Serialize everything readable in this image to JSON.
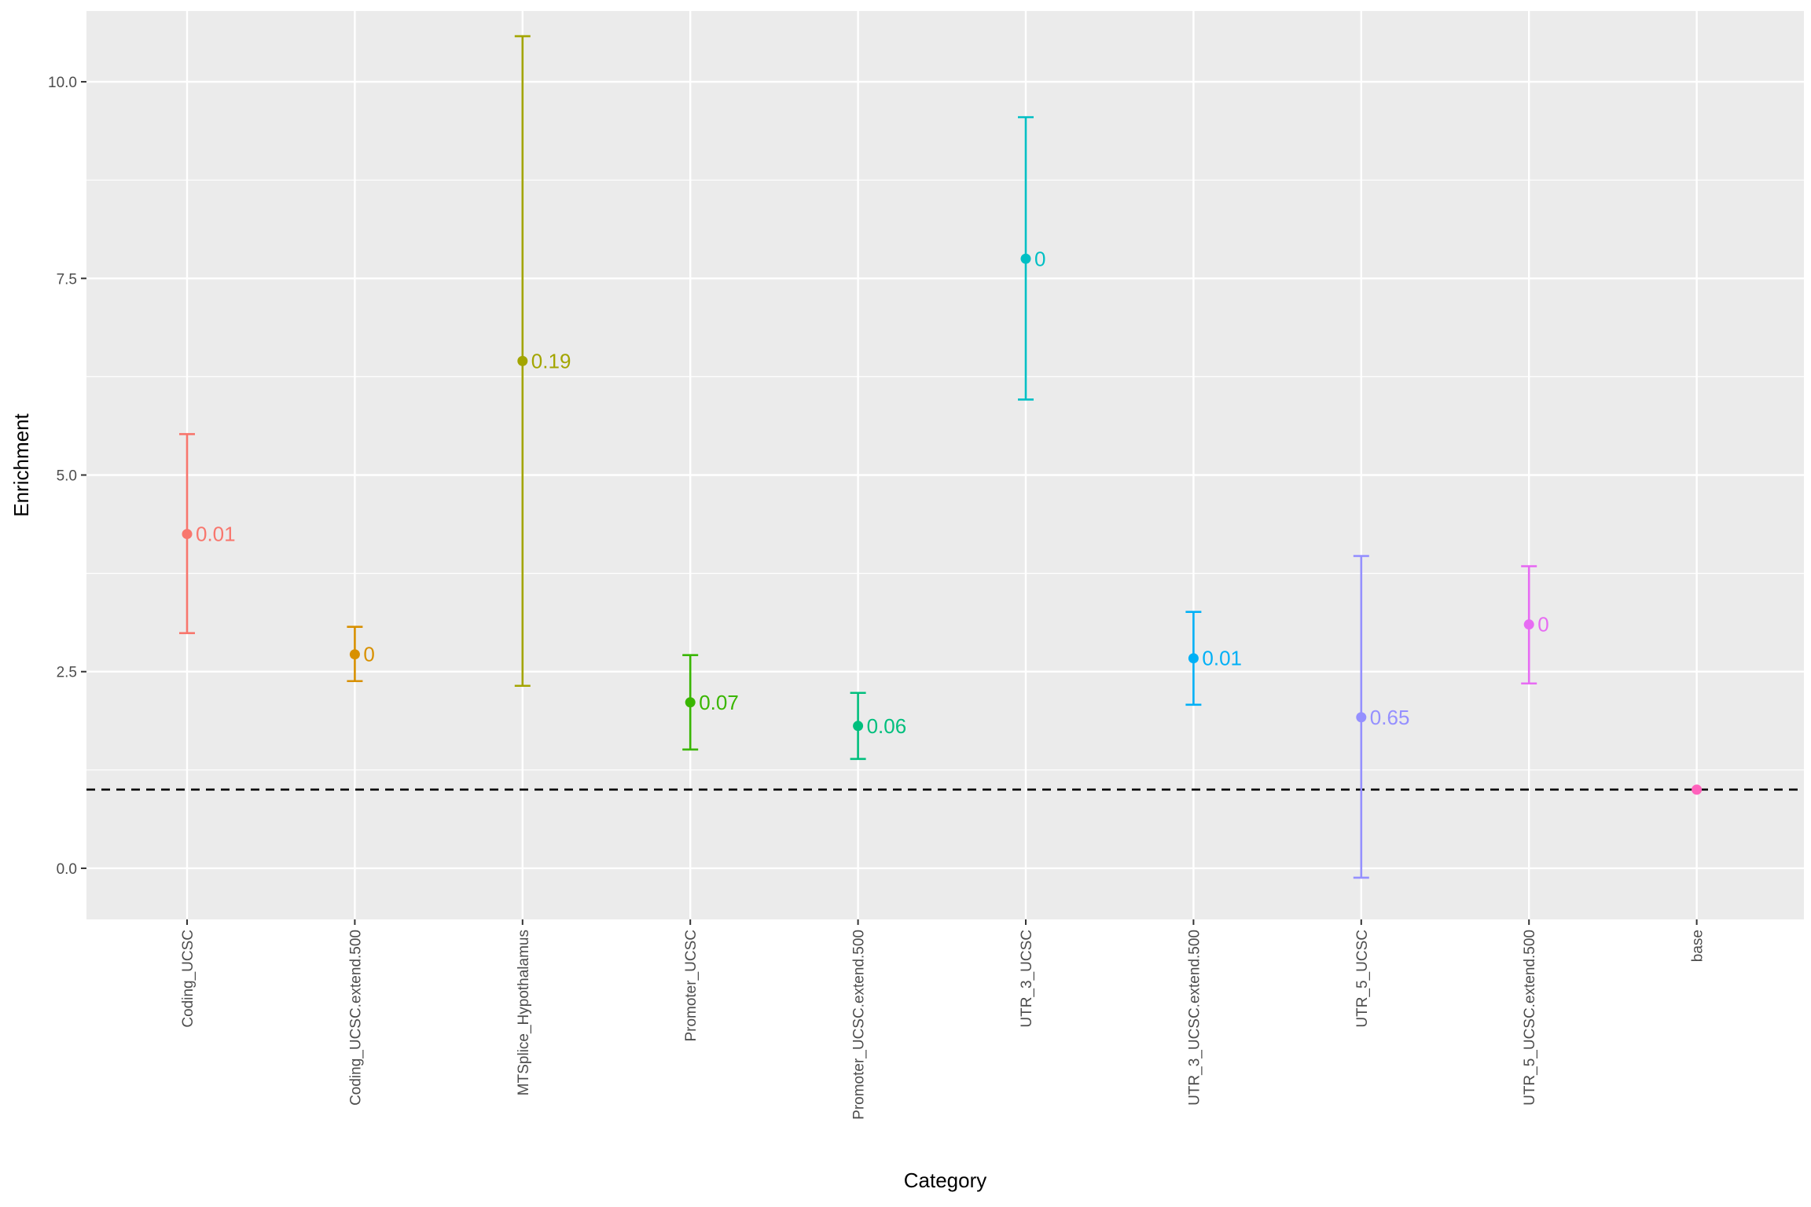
{
  "chart_data": {
    "type": "scatter",
    "subtype": "point-with-error-bars",
    "xlabel": "Category",
    "ylabel": "Enrichment",
    "ylim": [
      -0.65,
      10.9
    ],
    "yticks": [
      0.0,
      2.5,
      5.0,
      7.5,
      10.0
    ],
    "ytick_labels": [
      "0.0",
      "2.5",
      "5.0",
      "7.5",
      "10.0"
    ],
    "reference_line": {
      "y": 1.0,
      "style": "dashed",
      "color": "#000000"
    },
    "grid": true,
    "panel_background": "#ebebeb",
    "points": [
      {
        "category": "Coding_UCSC",
        "y": 4.25,
        "lower": 2.99,
        "upper": 5.52,
        "label": "0.01",
        "color": "#F8766D"
      },
      {
        "category": "Coding_UCSC.extend.500",
        "y": 2.72,
        "lower": 2.38,
        "upper": 3.07,
        "label": "0",
        "color": "#D89000"
      },
      {
        "category": "MTSplice_Hypothalamus",
        "y": 6.45,
        "lower": 2.32,
        "upper": 10.58,
        "label": "0.19",
        "color": "#A3A500"
      },
      {
        "category": "Promoter_UCSC",
        "y": 2.11,
        "lower": 1.51,
        "upper": 2.71,
        "label": "0.07",
        "color": "#39B600"
      },
      {
        "category": "Promoter_UCSC.extend.500",
        "y": 1.81,
        "lower": 1.39,
        "upper": 2.23,
        "label": "0.06",
        "color": "#00BF7D"
      },
      {
        "category": "UTR_3_UCSC",
        "y": 7.75,
        "lower": 5.96,
        "upper": 9.55,
        "label": "0",
        "color": "#00BFC4"
      },
      {
        "category": "UTR_3_UCSC.extend.500",
        "y": 2.67,
        "lower": 2.08,
        "upper": 3.26,
        "label": "0.01",
        "color": "#00B0F6"
      },
      {
        "category": "UTR_5_UCSC",
        "y": 1.92,
        "lower": -0.12,
        "upper": 3.97,
        "label": "0.65",
        "color": "#9590FF"
      },
      {
        "category": "UTR_5_UCSC.extend.500",
        "y": 3.1,
        "lower": 2.35,
        "upper": 3.84,
        "label": "0",
        "color": "#E76BF3"
      },
      {
        "category": "base",
        "y": 1.0,
        "lower": 1.0,
        "upper": 1.0,
        "label": "",
        "color": "#FF62BC"
      }
    ]
  }
}
